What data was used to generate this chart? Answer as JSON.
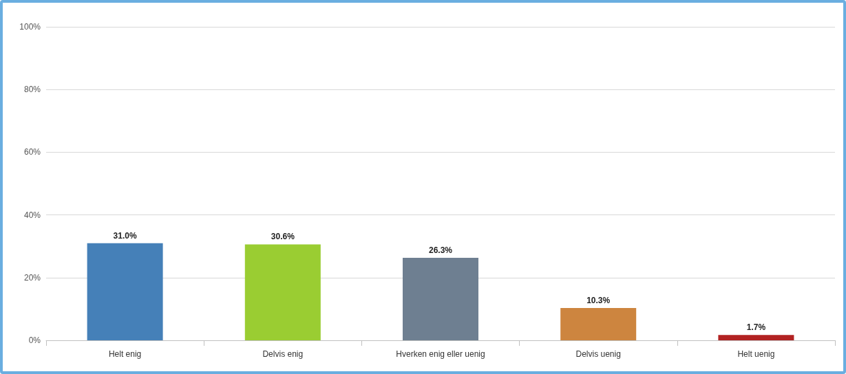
{
  "chart_data": {
    "type": "bar",
    "categories": [
      "Helt enig",
      "Delvis enig",
      "Hverken enig eller uenig",
      "Delvis uenig",
      "Helt uenig"
    ],
    "values": [
      31.0,
      30.6,
      26.3,
      10.3,
      1.7
    ],
    "colors": [
      "#4580b8",
      "#9acd32",
      "#6e7f91",
      "#cd853f",
      "#b22222"
    ],
    "value_labels": [
      "31.0%",
      "30.6%",
      "26.3%",
      "10.3%",
      "1.7%"
    ],
    "ylim": [
      0,
      100
    ],
    "yticks": [
      {
        "value": 0,
        "label": "0%"
      },
      {
        "value": 20,
        "label": "20%"
      },
      {
        "value": 40,
        "label": "40%"
      },
      {
        "value": 60,
        "label": "60%"
      },
      {
        "value": 80,
        "label": "80%"
      },
      {
        "value": 100,
        "label": "100%"
      }
    ],
    "grid": "y"
  }
}
